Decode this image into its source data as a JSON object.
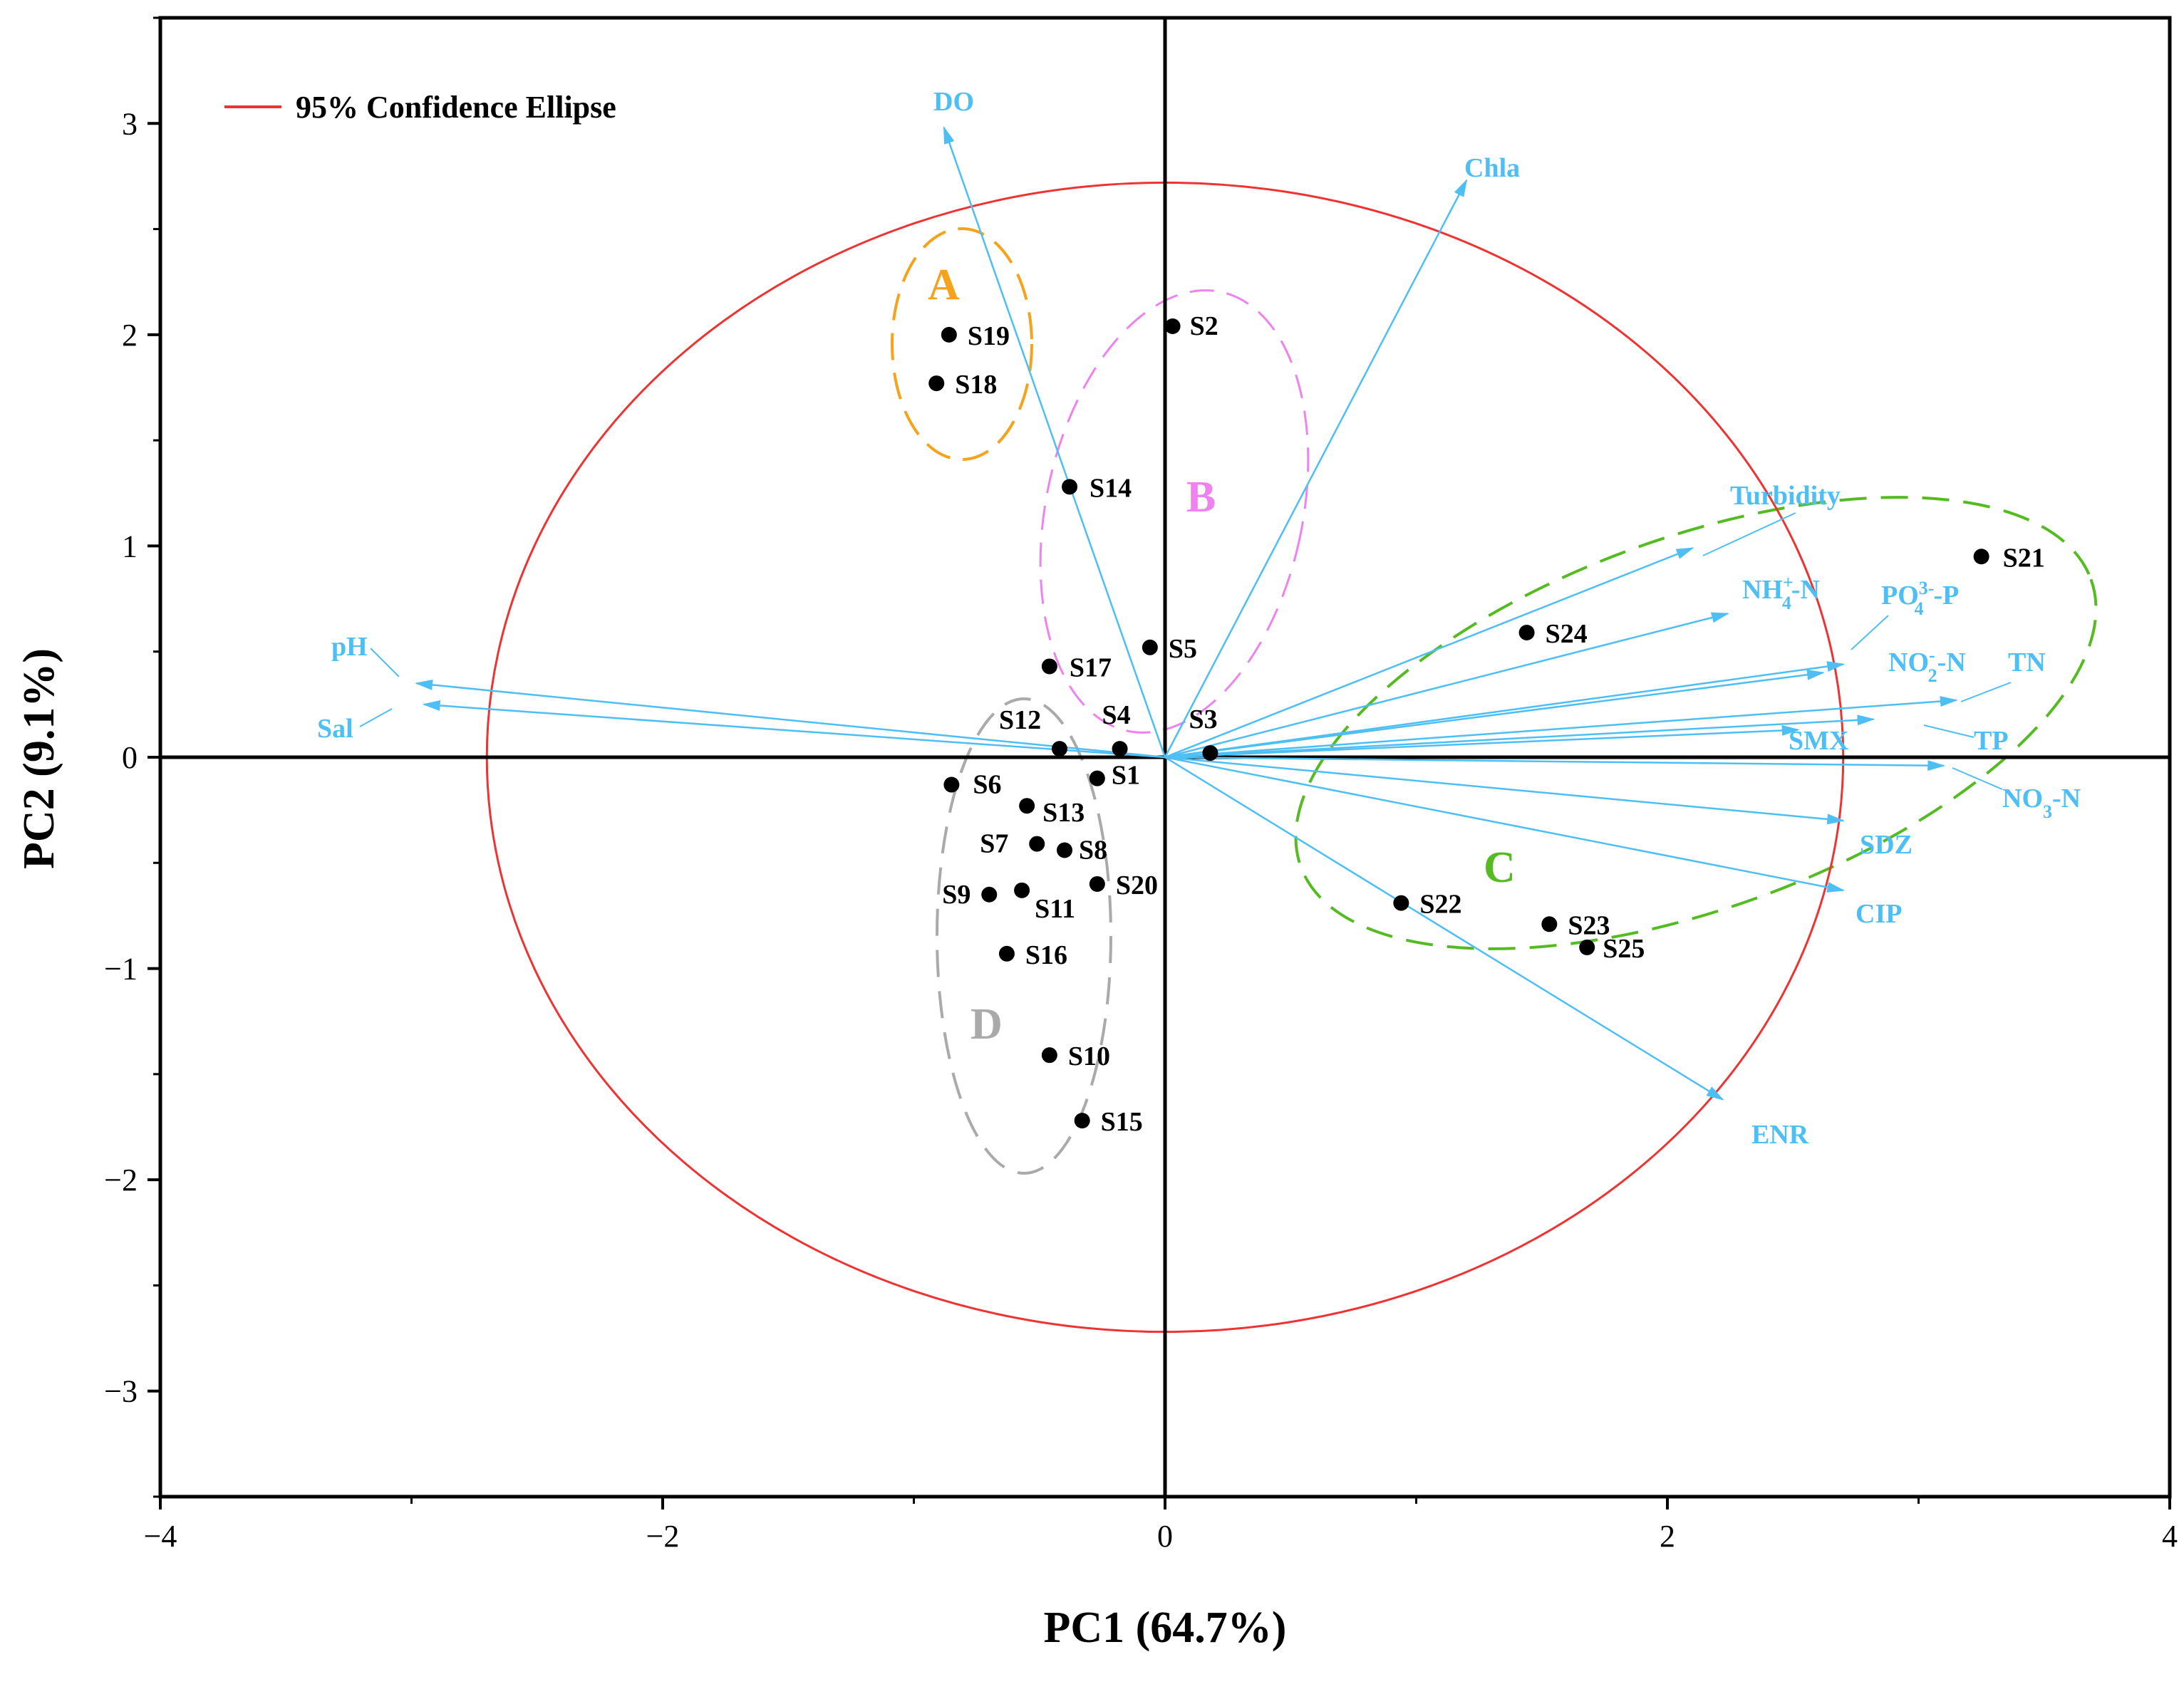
{
  "colors": {
    "vector": "#4DBFF5",
    "ellipse": "#EE3333",
    "groupA": "#F7A21B",
    "groupB": "#EE82EE",
    "groupC": "#55BB22",
    "groupD": "#AAAAAA",
    "point": "#000000"
  },
  "chart_data": {
    "type": "scatter",
    "subtype": "PCA biplot",
    "xlabel": "PC1 (64.7%)",
    "ylabel": "PC2 (9.1%)",
    "xlim": [
      -4,
      4
    ],
    "ylim": [
      -3.5,
      3.5
    ],
    "xticks": [
      {
        "value": -4,
        "label": "−4"
      },
      {
        "value": -2,
        "label": "−2"
      },
      {
        "value": 0,
        "label": "0"
      },
      {
        "value": 2,
        "label": "2"
      },
      {
        "value": 4,
        "label": "4"
      }
    ],
    "yticks": [
      {
        "value": -3,
        "label": "−3"
      },
      {
        "value": -2,
        "label": "−2"
      },
      {
        "value": -1,
        "label": "−1"
      },
      {
        "value": 0,
        "label": "0"
      },
      {
        "value": 1,
        "label": "1"
      },
      {
        "value": 2,
        "label": "2"
      },
      {
        "value": 3,
        "label": "3"
      }
    ],
    "legend": {
      "label": "95% Confidence Ellipse",
      "placement": "top-left"
    },
    "confidence_ellipse": {
      "cx": 0,
      "cy": 0,
      "rx": 2.7,
      "ry": 2.72
    },
    "samples": [
      {
        "name": "S1",
        "x": -0.27,
        "y": -0.1
      },
      {
        "name": "S2",
        "x": 0.03,
        "y": 2.04
      },
      {
        "name": "S3",
        "x": 0.18,
        "y": 0.02
      },
      {
        "name": "S4",
        "x": -0.18,
        "y": 0.04
      },
      {
        "name": "S5",
        "x": -0.06,
        "y": 0.52
      },
      {
        "name": "S6",
        "x": -0.85,
        "y": -0.13
      },
      {
        "name": "S7",
        "x": -0.51,
        "y": -0.41
      },
      {
        "name": "S8",
        "x": -0.4,
        "y": -0.44
      },
      {
        "name": "S9",
        "x": -0.7,
        "y": -0.65
      },
      {
        "name": "S10",
        "x": -0.46,
        "y": -1.41
      },
      {
        "name": "S11",
        "x": -0.57,
        "y": -0.63
      },
      {
        "name": "S12",
        "x": -0.42,
        "y": 0.04
      },
      {
        "name": "S13",
        "x": -0.55,
        "y": -0.23
      },
      {
        "name": "S14",
        "x": -0.38,
        "y": 1.28
      },
      {
        "name": "S15",
        "x": -0.33,
        "y": -1.72
      },
      {
        "name": "S16",
        "x": -0.63,
        "y": -0.93
      },
      {
        "name": "S17",
        "x": -0.46,
        "y": 0.43
      },
      {
        "name": "S18",
        "x": -0.91,
        "y": 1.77
      },
      {
        "name": "S19",
        "x": -0.86,
        "y": 2.0
      },
      {
        "name": "S20",
        "x": -0.27,
        "y": -0.6
      },
      {
        "name": "S21",
        "x": 3.25,
        "y": 0.95
      },
      {
        "name": "S22",
        "x": 0.94,
        "y": -0.69
      },
      {
        "name": "S23",
        "x": 1.53,
        "y": -0.79
      },
      {
        "name": "S24",
        "x": 1.44,
        "y": 0.59
      },
      {
        "name": "S25",
        "x": 1.68,
        "y": -0.9
      }
    ],
    "loadings": [
      {
        "name": "DO",
        "x": -0.88,
        "y": 2.98
      },
      {
        "name": "Chla",
        "x": 1.2,
        "y": 2.73
      },
      {
        "name": "Turbidity",
        "x": 2.1,
        "y": 0.99
      },
      {
        "name": "NH4+-N",
        "x": 2.24,
        "y": 0.68
      },
      {
        "name": "PO4^3--P",
        "x": 2.7,
        "y": 0.44
      },
      {
        "name": "NO2--N",
        "x": 2.62,
        "y": 0.4
      },
      {
        "name": "TN",
        "x": 3.15,
        "y": 0.27
      },
      {
        "name": "SMX",
        "x": 2.82,
        "y": 0.18
      },
      {
        "name": "TP",
        "x": 2.52,
        "y": 0.13
      },
      {
        "name": "NO3--N",
        "x": 3.1,
        "y": -0.04
      },
      {
        "name": "SDZ",
        "x": 2.7,
        "y": -0.3
      },
      {
        "name": "CIP",
        "x": 2.7,
        "y": -0.63
      },
      {
        "name": "ENR",
        "x": 2.22,
        "y": -1.62
      },
      {
        "name": "pH",
        "x": -2.98,
        "y": 0.35
      },
      {
        "name": "Sal",
        "x": -2.95,
        "y": 0.25
      }
    ],
    "groups": [
      {
        "name": "A",
        "members": [
          "S18",
          "S19"
        ]
      },
      {
        "name": "B",
        "members": [
          "S2",
          "S5",
          "S14",
          "S17"
        ]
      },
      {
        "name": "C",
        "members": [
          "S21",
          "S22",
          "S23",
          "S24",
          "S25"
        ]
      },
      {
        "name": "D",
        "members": [
          "S6",
          "S7",
          "S8",
          "S9",
          "S10",
          "S11",
          "S12",
          "S13",
          "S15",
          "S16",
          "S20"
        ]
      }
    ]
  }
}
